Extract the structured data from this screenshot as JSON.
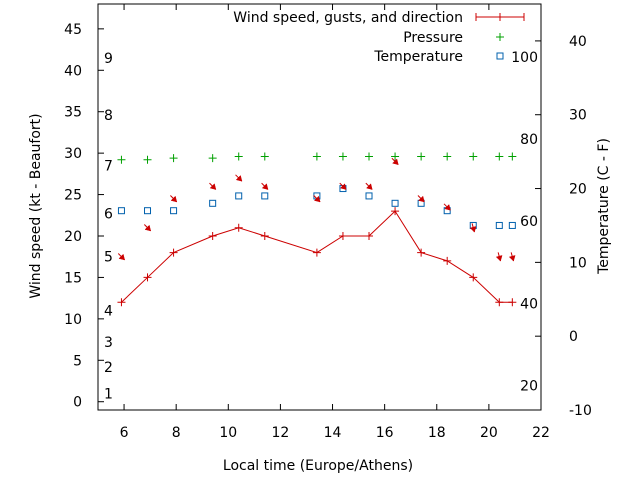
{
  "chart_data": {
    "type": "line",
    "title": "",
    "xlabel": "Local time (Europe/Athens)",
    "ylabel": "Wind speed (kt - Beaufort)",
    "y2label": "Temperature (C - F)",
    "xlim": [
      5,
      22
    ],
    "ylim": [
      -1,
      48
    ],
    "y2lim": [
      -10,
      45
    ],
    "xticks": [
      6,
      8,
      10,
      12,
      14,
      16,
      18,
      20,
      22
    ],
    "yticks": [
      0,
      5,
      10,
      15,
      20,
      25,
      30,
      35,
      40,
      45
    ],
    "y2ticks": [
      -10,
      0,
      10,
      20,
      30,
      40
    ],
    "beaufort": [
      {
        "label": "1",
        "y": 1
      },
      {
        "label": "2",
        "y": 4.2
      },
      {
        "label": "3",
        "y": 7.2
      },
      {
        "label": "4",
        "y": 11
      },
      {
        "label": "5",
        "y": 17.5
      },
      {
        "label": "6",
        "y": 22.7
      },
      {
        "label": "7",
        "y": 28.5
      },
      {
        "label": "8",
        "y": 34.6
      },
      {
        "label": "9",
        "y": 41.5
      }
    ],
    "fahrenheit": [
      {
        "label": "20",
        "t": -6.7
      },
      {
        "label": "40",
        "t": 4.4
      },
      {
        "label": "60",
        "t": 15.6
      },
      {
        "label": "80",
        "t": 26.7
      },
      {
        "label": "100",
        "t": 37.8
      }
    ],
    "legend": {
      "position": "top-right",
      "entries": [
        "Wind speed, gusts, and direction",
        "Pressure",
        "Temperature"
      ]
    },
    "series": [
      {
        "name": "Wind speed, gusts, and direction",
        "color": "#cc0000",
        "x": [
          5.9,
          6.9,
          7.9,
          9.4,
          10.4,
          11.4,
          13.4,
          14.4,
          15.4,
          16.4,
          17.4,
          18.4,
          19.4,
          20.4,
          20.9
        ],
        "values": [
          12,
          15,
          18,
          20,
          21,
          20,
          18,
          20,
          20,
          23,
          18,
          17,
          15,
          12,
          12
        ]
      },
      {
        "name": "Pressure",
        "color": "#00a000",
        "x": [
          5.9,
          6.9,
          7.9,
          9.4,
          10.4,
          11.4,
          13.4,
          14.4,
          15.4,
          16.4,
          17.4,
          18.4,
          19.4,
          20.4,
          20.9
        ],
        "values": [
          29.2,
          29.2,
          29.4,
          29.4,
          29.6,
          29.6,
          29.6,
          29.6,
          29.6,
          29.6,
          29.6,
          29.6,
          29.6,
          29.6,
          29.6
        ]
      },
      {
        "name": "Temperature",
        "color": "#0060ad",
        "axis": "y2",
        "x": [
          5.9,
          6.9,
          7.9,
          9.4,
          10.4,
          11.4,
          13.4,
          14.4,
          15.4,
          16.4,
          17.4,
          18.4,
          19.4,
          20.4,
          20.9
        ],
        "values": [
          17,
          17,
          17,
          18,
          19,
          19,
          19,
          20,
          19,
          18,
          18,
          17,
          15,
          15,
          15
        ]
      }
    ],
    "wind_direction_deg": [
      315,
      315,
      315,
      315,
      315,
      315,
      315,
      315,
      315,
      315,
      315,
      315,
      345,
      345,
      345
    ],
    "wind_arrow_y": [
      17.5,
      21,
      24.5,
      26,
      27,
      26,
      24.5,
      26,
      26,
      29,
      24.5,
      23.5,
      21,
      17.5,
      17.5
    ]
  }
}
